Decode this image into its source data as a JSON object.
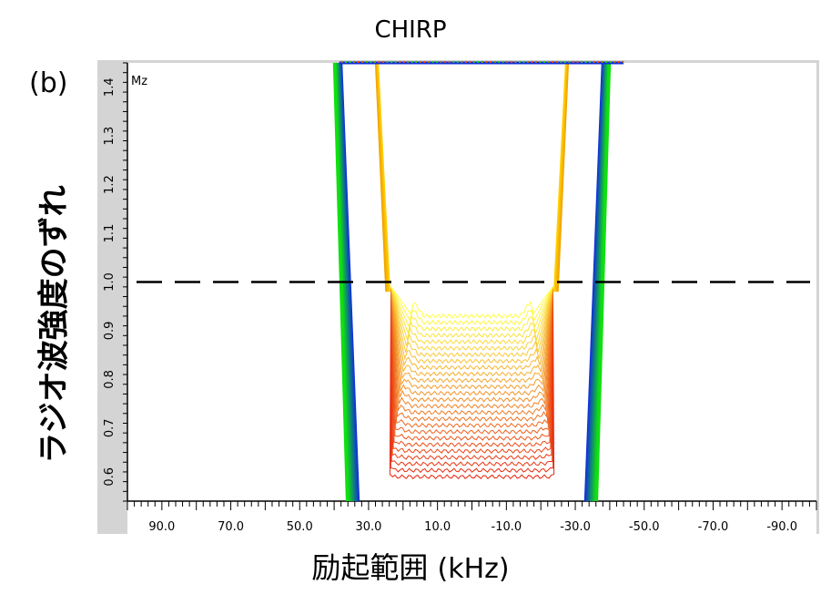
{
  "chart_data": {
    "type": "line",
    "panel_label": "(b)",
    "title": "CHIRP",
    "quantity_label": "Mz",
    "xlabel_main": "励起範囲",
    "xlabel_unit": "(kHz)",
    "ylabel": "ラジオ波強度のずれ",
    "xlim": [
      100,
      -100
    ],
    "ylim": [
      0.55,
      1.45
    ],
    "x_ticks": [
      "90.0",
      "70.0",
      "50.0",
      "30.0",
      "10.0",
      "-10.0",
      "-30.0",
      "-50.0",
      "-70.0",
      "-90.0"
    ],
    "y_ticks": [
      "0.6",
      "0.7",
      "0.8",
      "0.9",
      "1.0",
      "1.1",
      "1.2",
      "1.3",
      "1.4"
    ],
    "reference_line": {
      "y": 1.0,
      "style": "dashed"
    },
    "plateau": {
      "y_start": 0.6,
      "y_end": 0.93,
      "count": 26,
      "bottom_color": "#e8210c",
      "top_color": "#ffff44",
      "edge_x_bottom": 23.0,
      "edge_x_top": 17.0
    },
    "outer_bands": {
      "x_bottom": 33.0,
      "x_top": 38.0,
      "blue_color": "#1030d8",
      "green_color": "#10e010"
    },
    "inner_spikes": {
      "x_bottom": 25.0,
      "x_top": 28.0,
      "color_outer": "#f0a000",
      "color_inner": "#ffd000"
    }
  }
}
